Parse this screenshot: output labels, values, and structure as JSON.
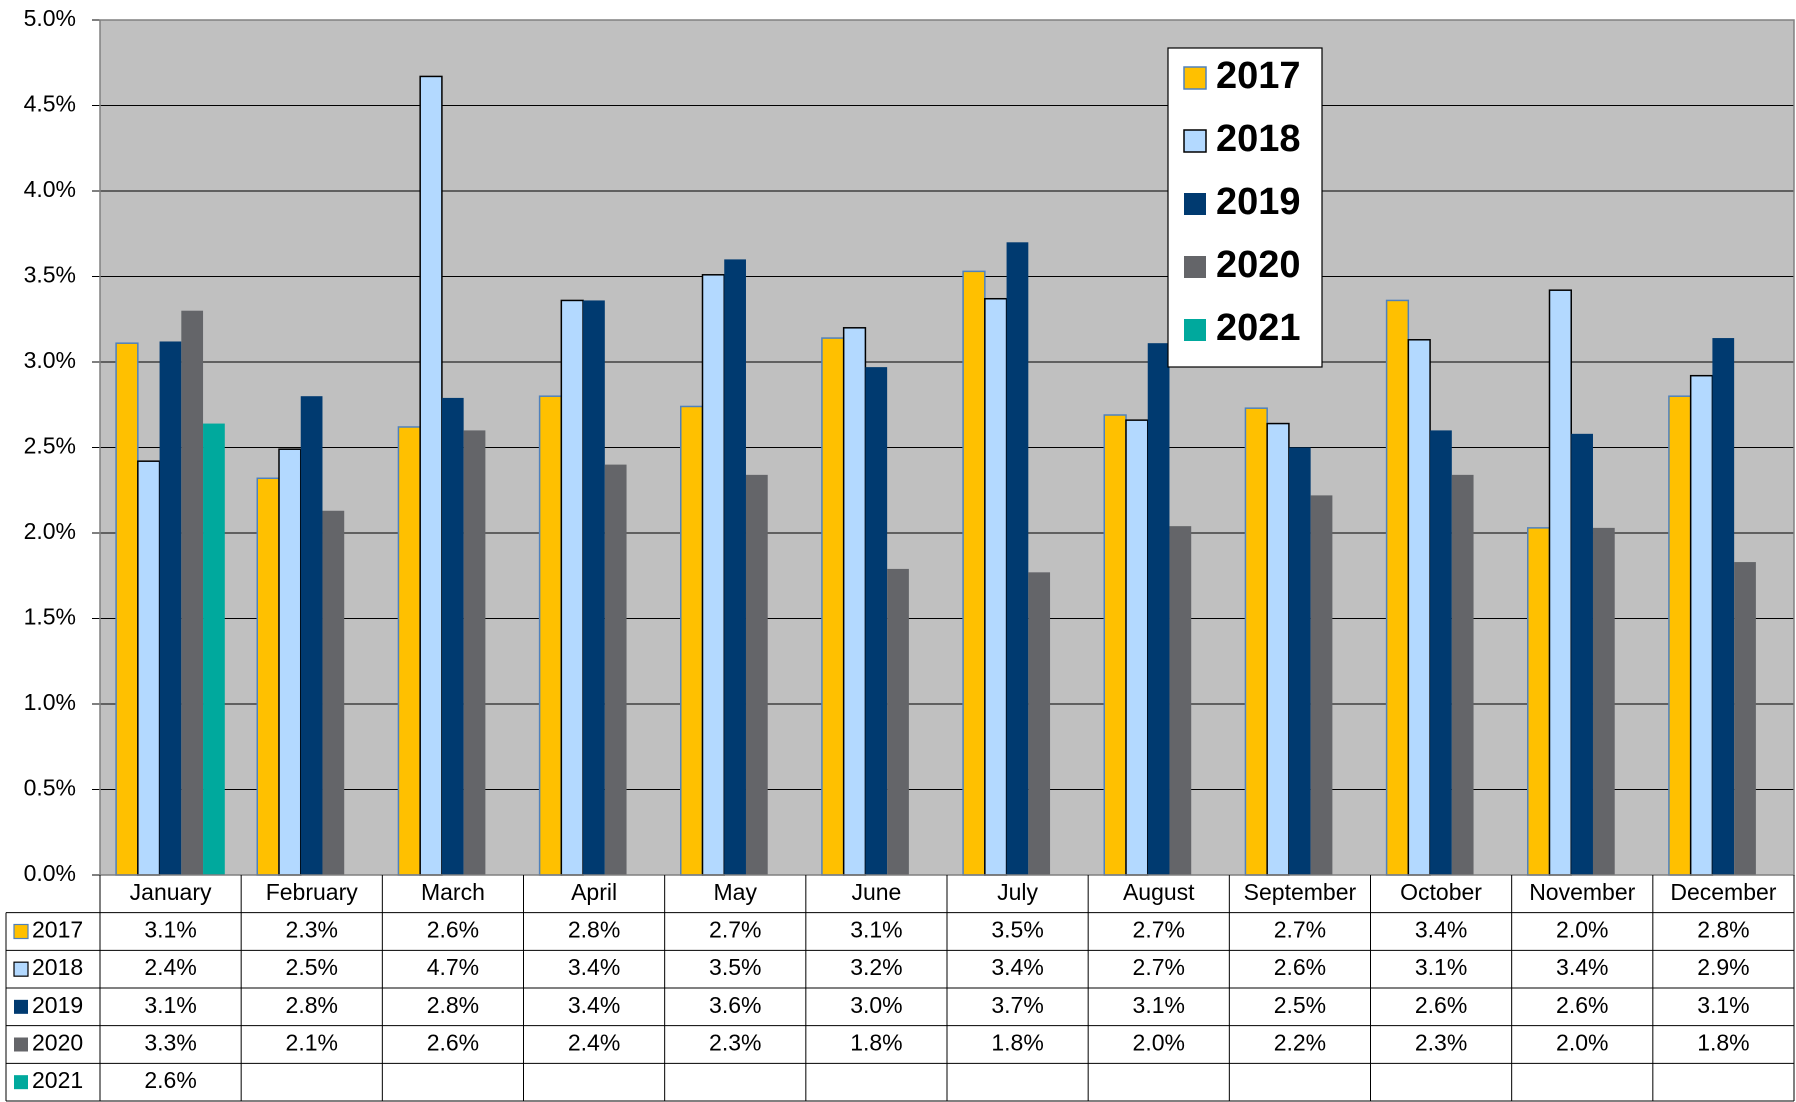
{
  "chart_data": {
    "type": "bar",
    "categories": [
      "January",
      "February",
      "March",
      "April",
      "May",
      "June",
      "July",
      "August",
      "September",
      "October",
      "November",
      "December"
    ],
    "series": [
      {
        "name": "2017",
        "color": "#ffc000",
        "values": [
          3.11,
          2.32,
          2.62,
          2.8,
          2.74,
          3.14,
          3.53,
          2.69,
          2.73,
          3.36,
          2.03,
          2.8
        ],
        "value_labels": [
          "3.1%",
          "2.3%",
          "2.6%",
          "2.8%",
          "2.7%",
          "3.1%",
          "3.5%",
          "2.7%",
          "2.7%",
          "3.4%",
          "2.0%",
          "2.8%"
        ]
      },
      {
        "name": "2018",
        "color": "#b3d9ff",
        "values": [
          2.42,
          2.49,
          4.67,
          3.36,
          3.51,
          3.2,
          3.37,
          2.66,
          2.64,
          3.13,
          3.42,
          2.92
        ],
        "value_labels": [
          "2.4%",
          "2.5%",
          "4.7%",
          "3.4%",
          "3.5%",
          "3.2%",
          "3.4%",
          "2.7%",
          "2.6%",
          "3.1%",
          "3.4%",
          "2.9%"
        ]
      },
      {
        "name": "2019",
        "color": "#003a70",
        "values": [
          3.12,
          2.8,
          2.79,
          3.36,
          3.6,
          2.97,
          3.7,
          3.11,
          2.5,
          2.6,
          2.58,
          3.14
        ],
        "value_labels": [
          "3.1%",
          "2.8%",
          "2.8%",
          "3.4%",
          "3.6%",
          "3.0%",
          "3.7%",
          "3.1%",
          "2.5%",
          "2.6%",
          "2.6%",
          "3.1%"
        ]
      },
      {
        "name": "2020",
        "color": "#646569",
        "values": [
          3.3,
          2.13,
          2.6,
          2.4,
          2.34,
          1.79,
          1.77,
          2.04,
          2.22,
          2.34,
          2.03,
          1.83
        ],
        "value_labels": [
          "3.3%",
          "2.1%",
          "2.6%",
          "2.4%",
          "2.3%",
          "1.8%",
          "1.8%",
          "2.0%",
          "2.2%",
          "2.3%",
          "2.0%",
          "1.8%"
        ]
      },
      {
        "name": "2021",
        "color": "#00a99d",
        "values": [
          2.64,
          null,
          null,
          null,
          null,
          null,
          null,
          null,
          null,
          null,
          null,
          null
        ],
        "value_labels": [
          "2.6%",
          null,
          null,
          null,
          null,
          null,
          null,
          null,
          null,
          null,
          null,
          null
        ]
      }
    ],
    "ylim": [
      0,
      5
    ],
    "yticks": [
      {
        "value": 0,
        "label": "0.0%"
      },
      {
        "value": 0.5,
        "label": "0.5%"
      },
      {
        "value": 1,
        "label": "1.0%"
      },
      {
        "value": 1.5,
        "label": "1.5%"
      },
      {
        "value": 2,
        "label": "2.0%"
      },
      {
        "value": 2.5,
        "label": "2.5%"
      },
      {
        "value": 3,
        "label": "3.0%"
      },
      {
        "value": 3.5,
        "label": "3.5%"
      },
      {
        "value": 4,
        "label": "4.0%"
      },
      {
        "value": 4.5,
        "label": "4.5%"
      },
      {
        "value": 5,
        "label": "5.0%"
      }
    ],
    "grid": true,
    "plot_background": "#c0c0c0",
    "data_table": true
  }
}
